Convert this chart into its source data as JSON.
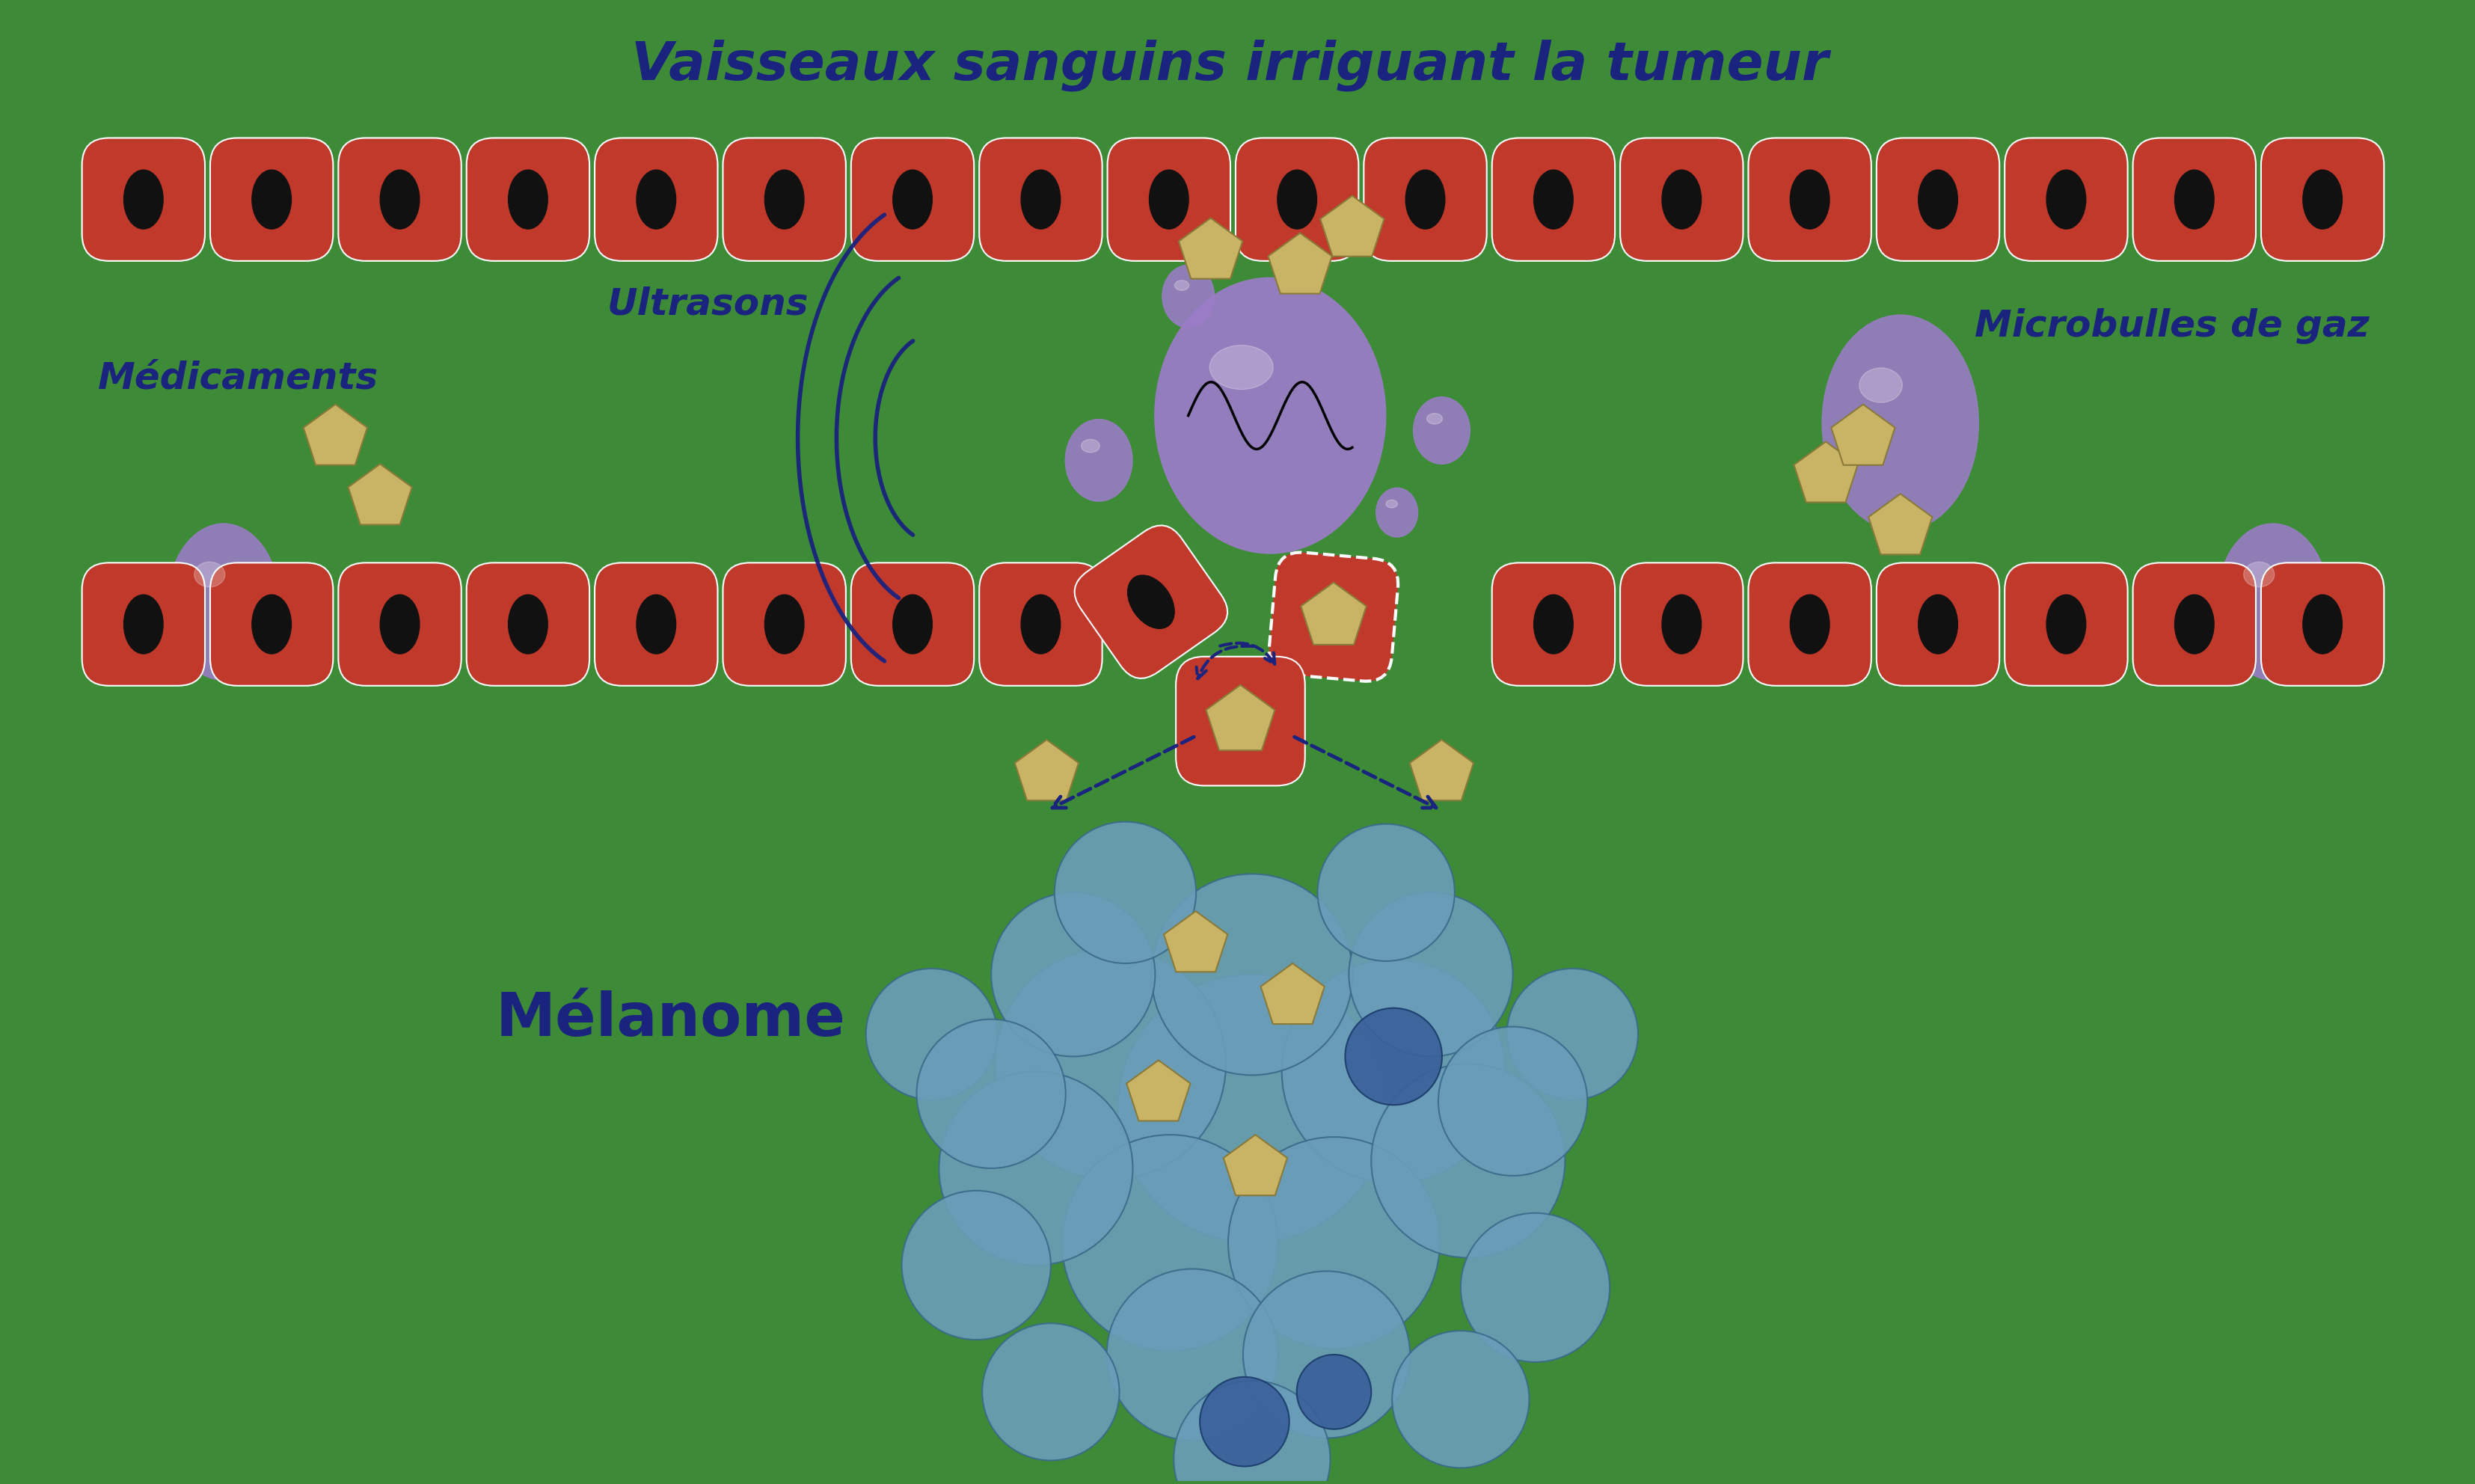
{
  "bg_color": "#3d8b37",
  "title_top": "Vaisseaux sanguins irriguant la tumeur",
  "title_color": "#1a237e",
  "label_medicaments": "Médicaments",
  "label_ultrasons": "Ultrasons",
  "label_microbulles": "Microbulles de gaz",
  "label_melanome": "Mélanome",
  "cell_color": "#c0392b",
  "cell_nucleus_color": "#111111",
  "bubble_color": "#9b7cc8",
  "bubble_edge": "#6a4c9c",
  "drug_color": "#c8b464",
  "drug_edge": "#8a7a3a",
  "melanome_color": "#6a9db8",
  "melanome_edge": "#3a6a8b",
  "melanome_blue_spot": "#3a5f9a",
  "arrow_color": "#1a237e",
  "wave_color": "#1a237e",
  "font_size_title": 52,
  "font_size_labels": 36,
  "font_size_melanome": 58
}
